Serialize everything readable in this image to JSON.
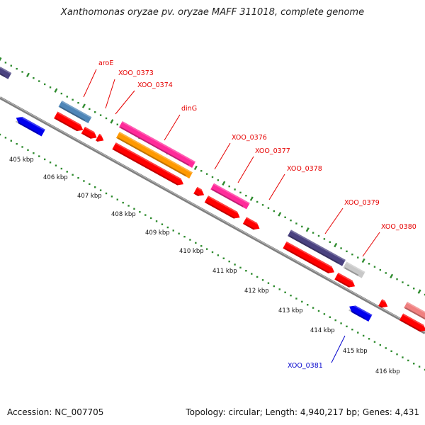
{
  "title": "Xanthomonas oryzae pv. oryzae MAFF 311018, complete genome",
  "footer": {
    "accession": "Accession: NC_007705",
    "summary": "Topology: circular; Length: 4,940,217 bp; Genes: 4,431"
  },
  "colors": {
    "backbone": "#8a8a8a",
    "tick_dots": "#2e8b2e",
    "label_forward": "#e60000",
    "label_reverse": "#0000cc"
  },
  "ticks": [
    "405 kbp",
    "406 kbp",
    "407 kbp",
    "408 kbp",
    "409 kbp",
    "410 kbp",
    "411 kbp",
    "412 kbp",
    "413 kbp",
    "414 kbp",
    "415 kbp",
    "416 kbp"
  ],
  "gene_labels": [
    {
      "text": "aroE",
      "strand": "forward"
    },
    {
      "text": "XOO_0373",
      "strand": "forward"
    },
    {
      "text": "XOO_0374",
      "strand": "forward"
    },
    {
      "text": "dinG",
      "strand": "forward"
    },
    {
      "text": "XOO_0376",
      "strand": "forward"
    },
    {
      "text": "XOO_0377",
      "strand": "forward"
    },
    {
      "text": "XOO_0378",
      "strand": "forward"
    },
    {
      "text": "XOO_0379",
      "strand": "forward"
    },
    {
      "text": "XOO_0380",
      "strand": "forward"
    },
    {
      "text": "XOO_0381",
      "strand": "reverse"
    }
  ],
  "cog_features": [
    {
      "gene": "aroE",
      "color": "#4f86b8"
    },
    {
      "gene": "dinG",
      "color": "#ff2a9a"
    },
    {
      "gene": "dinG",
      "color": "#ff9900"
    },
    {
      "gene": "XOO_0377",
      "color": "#ff2a9a"
    },
    {
      "gene": "XOO_0379",
      "color": "#4a4280"
    },
    {
      "gene": "XOO_0380",
      "color": "#c8c8c8"
    },
    {
      "gene": "",
      "color": "#f08080"
    },
    {
      "gene": "",
      "color": "#4a4280"
    }
  ],
  "cds_features": [
    {
      "gene": "aroE",
      "strand": "forward",
      "color": "#ff0000"
    },
    {
      "gene": "XOO_0373",
      "strand": "forward",
      "color": "#ff0000"
    },
    {
      "gene": "XOO_0374",
      "strand": "forward",
      "color": "#ff0000"
    },
    {
      "gene": "dinG",
      "strand": "forward",
      "color": "#ff0000"
    },
    {
      "gene": "XOO_0376",
      "strand": "forward",
      "color": "#ff0000"
    },
    {
      "gene": "XOO_0377",
      "strand": "forward",
      "color": "#ff0000"
    },
    {
      "gene": "XOO_0378",
      "strand": "forward",
      "color": "#ff0000"
    },
    {
      "gene": "XOO_0379",
      "strand": "forward",
      "color": "#ff0000"
    },
    {
      "gene": "XOO_0380",
      "strand": "forward",
      "color": "#ff0000"
    },
    {
      "gene": "",
      "strand": "forward",
      "color": "#ff0000"
    },
    {
      "gene": "",
      "strand": "forward",
      "color": "#ff0000"
    },
    {
      "gene": "",
      "strand": "reverse",
      "color": "#0000ee"
    },
    {
      "gene": "XOO_0381",
      "strand": "reverse",
      "color": "#0000ee"
    }
  ]
}
